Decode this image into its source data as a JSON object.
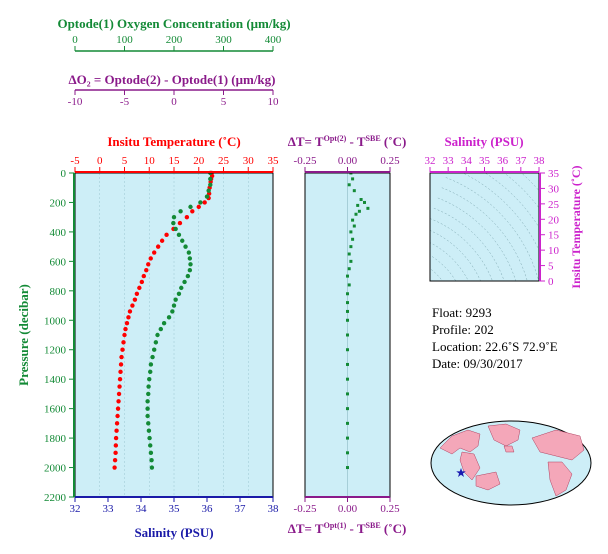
{
  "colors": {
    "oxygen": "#138a36",
    "delta_o2": "#8a1a8a",
    "temperature": "#ff0000",
    "salinity": "#1a1aa8",
    "pressure": "#138a36",
    "delta_t": "#8a1a8a",
    "ts_panel": "#cc22cc",
    "panel_bg": "#cdeef7",
    "frame": "#000000"
  },
  "oxygen_axis": {
    "title": "Optode(1) Oxygen Concentration (μm/kg)",
    "ticks": [
      "0",
      "100",
      "200",
      "300",
      "400"
    ],
    "range": [
      0,
      400
    ]
  },
  "delta_o2_axis": {
    "title": "ΔO₂ = Optode(2) - Optode(1)  (μm/kg)",
    "ticks": [
      "-10",
      "-5",
      "0",
      "5",
      "10"
    ],
    "range": [
      -10,
      10
    ]
  },
  "profile_panel": {
    "temperature_title": "Insitu Temperature (˚C)",
    "temperature_ticks": [
      "-5",
      "0",
      "5",
      "10",
      "15",
      "20",
      "25",
      "30",
      "35"
    ],
    "salinity_label": "Salinity (PSU)",
    "salinity_ticks": [
      "32",
      "33",
      "34",
      "35",
      "36",
      "37",
      "38"
    ],
    "pressure_label": "Pressure (decibar)",
    "pressure_ticks": [
      "0",
      "200",
      "400",
      "600",
      "800",
      "1000",
      "1200",
      "1400",
      "1600",
      "1800",
      "2000",
      "2200"
    ]
  },
  "delta_t_panel": {
    "top_title": "ΔT= TOpt(2) - TSBE (˚C)",
    "bottom_title": "ΔT= TOpt(1) - TSBE (˚C)",
    "top_ticks": [
      "-0.25",
      "0.00",
      "0.25"
    ],
    "bottom_ticks": [
      "-0.25",
      "0.00",
      "0.25"
    ]
  },
  "ts_panel": {
    "salinity_title": "Salinity (PSU)",
    "salinity_ticks": [
      "32",
      "33",
      "34",
      "35",
      "36",
      "37",
      "38"
    ],
    "temperature_label": "Insitu Temperature (˚C)",
    "temperature_ticks": [
      "0",
      "5",
      "10",
      "15",
      "20",
      "25",
      "30",
      "35"
    ]
  },
  "float_info": {
    "float": "Float:  9293",
    "profile": "Profile:  202",
    "location": "Location:  22.6˚S  72.9˚E",
    "date": "Date:  09/30/2017"
  },
  "chart_data": [
    {
      "type": "scatter",
      "name": "temperature_profile",
      "xlabel": "Insitu Temperature (˚C)",
      "ylabel": "Pressure (decibar)",
      "xlim": [
        -5,
        35
      ],
      "ylim": [
        2200,
        0
      ],
      "points": [
        [
          22.6,
          0
        ],
        [
          22.7,
          20
        ],
        [
          22.5,
          40
        ],
        [
          22.4,
          60
        ],
        [
          22.2,
          100
        ],
        [
          22.1,
          140
        ],
        [
          22.0,
          170
        ],
        [
          21.2,
          200
        ],
        [
          20.0,
          230
        ],
        [
          18.7,
          260
        ],
        [
          17.6,
          300
        ],
        [
          16.2,
          340
        ],
        [
          14.9,
          380
        ],
        [
          13.5,
          420
        ],
        [
          12.6,
          460
        ],
        [
          11.8,
          500
        ],
        [
          11.0,
          540
        ],
        [
          10.3,
          580
        ],
        [
          9.8,
          620
        ],
        [
          9.4,
          660
        ],
        [
          8.9,
          700
        ],
        [
          8.5,
          740
        ],
        [
          8.0,
          780
        ],
        [
          7.5,
          820
        ],
        [
          7.1,
          860
        ],
        [
          6.6,
          900
        ],
        [
          6.1,
          940
        ],
        [
          5.8,
          980
        ],
        [
          5.5,
          1020
        ],
        [
          5.2,
          1060
        ],
        [
          5.0,
          1100
        ],
        [
          4.8,
          1150
        ],
        [
          4.6,
          1200
        ],
        [
          4.4,
          1250
        ],
        [
          4.3,
          1300
        ],
        [
          4.2,
          1350
        ],
        [
          4.1,
          1400
        ],
        [
          4.0,
          1450
        ],
        [
          3.9,
          1500
        ],
        [
          3.8,
          1550
        ],
        [
          3.7,
          1600
        ],
        [
          3.6,
          1650
        ],
        [
          3.5,
          1700
        ],
        [
          3.4,
          1750
        ],
        [
          3.3,
          1800
        ],
        [
          3.25,
          1850
        ],
        [
          3.2,
          1900
        ],
        [
          3.1,
          1950
        ],
        [
          3.0,
          2000
        ]
      ]
    },
    {
      "type": "scatter",
      "name": "salinity_profile",
      "xlabel": "Salinity (PSU)",
      "ylabel": "Pressure (decibar)",
      "xlim": [
        32,
        38
      ],
      "ylim": [
        2200,
        0
      ],
      "points": [
        [
          36.1,
          0
        ],
        [
          36.1,
          40
        ],
        [
          36.1,
          80
        ],
        [
          36.05,
          120
        ],
        [
          36.0,
          160
        ],
        [
          35.8,
          200
        ],
        [
          35.5,
          230
        ],
        [
          35.2,
          260
        ],
        [
          35.0,
          300
        ],
        [
          34.98,
          340
        ],
        [
          35.05,
          380
        ],
        [
          35.15,
          420
        ],
        [
          35.25,
          460
        ],
        [
          35.35,
          500
        ],
        [
          35.45,
          540
        ],
        [
          35.48,
          580
        ],
        [
          35.5,
          620
        ],
        [
          35.48,
          660
        ],
        [
          35.42,
          700
        ],
        [
          35.32,
          740
        ],
        [
          35.22,
          780
        ],
        [
          35.15,
          820
        ],
        [
          35.05,
          860
        ],
        [
          35.0,
          900
        ],
        [
          34.95,
          940
        ],
        [
          34.85,
          980
        ],
        [
          34.7,
          1020
        ],
        [
          34.6,
          1060
        ],
        [
          34.5,
          1100
        ],
        [
          34.45,
          1150
        ],
        [
          34.4,
          1200
        ],
        [
          34.35,
          1250
        ],
        [
          34.3,
          1300
        ],
        [
          34.28,
          1350
        ],
        [
          34.25,
          1400
        ],
        [
          34.23,
          1450
        ],
        [
          34.22,
          1500
        ],
        [
          34.2,
          1550
        ],
        [
          34.2,
          1600
        ],
        [
          34.2,
          1650
        ],
        [
          34.22,
          1700
        ],
        [
          34.24,
          1750
        ],
        [
          34.26,
          1800
        ],
        [
          34.28,
          1850
        ],
        [
          34.3,
          1900
        ],
        [
          34.32,
          1950
        ],
        [
          34.33,
          2000
        ]
      ]
    },
    {
      "type": "scatter",
      "name": "delta_t_profile",
      "xlabel": "ΔT= TOpt(1) - TSBE (˚C)",
      "ylabel": "Pressure (decibar)",
      "xlim": [
        -0.25,
        0.25
      ],
      "ylim": [
        2200,
        0
      ],
      "points": [
        [
          0.02,
          0
        ],
        [
          0.03,
          40
        ],
        [
          0.01,
          80
        ],
        [
          0.04,
          120
        ],
        [
          0.08,
          180
        ],
        [
          0.1,
          200
        ],
        [
          0.06,
          220
        ],
        [
          0.12,
          240
        ],
        [
          0.07,
          260
        ],
        [
          0.05,
          280
        ],
        [
          0.03,
          320
        ],
        [
          0.04,
          360
        ],
        [
          0.02,
          400
        ],
        [
          0.03,
          450
        ],
        [
          0.02,
          500
        ],
        [
          0.01,
          550
        ],
        [
          0.02,
          600
        ],
        [
          0.01,
          650
        ],
        [
          0.0,
          700
        ],
        [
          0.01,
          760
        ],
        [
          0.0,
          820
        ],
        [
          0.0,
          880
        ],
        [
          0.0,
          940
        ],
        [
          0.0,
          1000
        ],
        [
          0.0,
          1100
        ],
        [
          0.0,
          1200
        ],
        [
          0.0,
          1300
        ],
        [
          0.0,
          1400
        ],
        [
          0.0,
          1500
        ],
        [
          0.0,
          1600
        ],
        [
          0.0,
          1700
        ],
        [
          0.0,
          1800
        ],
        [
          0.0,
          1900
        ],
        [
          0.0,
          2000
        ]
      ]
    }
  ]
}
